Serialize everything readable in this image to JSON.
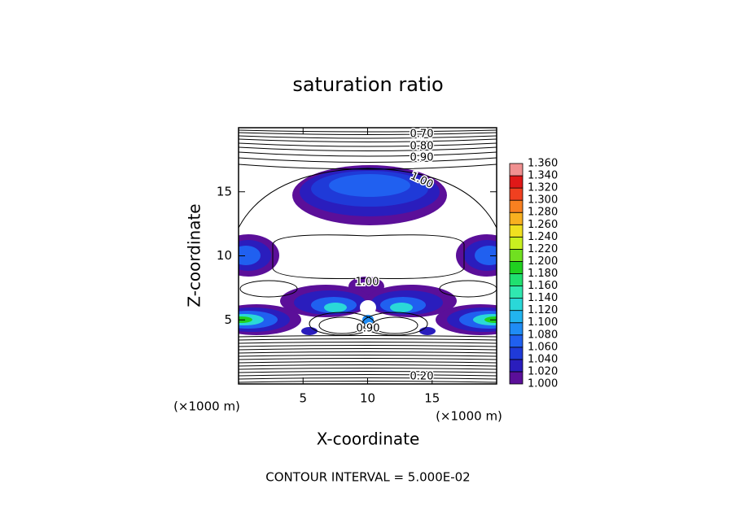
{
  "chart_data": {
    "type": "contour",
    "title": "saturation ratio",
    "x_label": "X-coordinate",
    "y_label": "Z-coordinate",
    "x_unit": "(×1000 m)",
    "y_unit": "(×1000 m)",
    "xlim": [
      0,
      20
    ],
    "ylim": [
      0,
      20
    ],
    "xticks": [
      5,
      10,
      15
    ],
    "yticks": [
      5,
      10,
      15
    ],
    "contour_labels": [
      "0.70",
      "0.80",
      "0.90",
      "1.00",
      "1.00",
      "0.90",
      "0.20"
    ],
    "contour_interval_label": "CONTOUR INTERVAL = 5.000E-02",
    "colorbar": {
      "ticks": [
        {
          "value": 1.0,
          "label": "1.000"
        },
        {
          "value": 1.02,
          "label": "1.020"
        },
        {
          "value": 1.04,
          "label": "1.040"
        },
        {
          "value": 1.06,
          "label": "1.060"
        },
        {
          "value": 1.08,
          "label": "1.080"
        },
        {
          "value": 1.1,
          "label": "1.100"
        },
        {
          "value": 1.12,
          "label": "1.120"
        },
        {
          "value": 1.14,
          "label": "1.140"
        },
        {
          "value": 1.16,
          "label": "1.160"
        },
        {
          "value": 1.18,
          "label": "1.180"
        },
        {
          "value": 1.2,
          "label": "1.200"
        },
        {
          "value": 1.22,
          "label": "1.220"
        },
        {
          "value": 1.24,
          "label": "1.240"
        },
        {
          "value": 1.26,
          "label": "1.260"
        },
        {
          "value": 1.28,
          "label": "1.280"
        },
        {
          "value": 1.3,
          "label": "1.300"
        },
        {
          "value": 1.32,
          "label": "1.320"
        },
        {
          "value": 1.34,
          "label": "1.340"
        },
        {
          "value": 1.36,
          "label": "1.360"
        }
      ],
      "colors": [
        "#5b0f99",
        "#2a1dbd",
        "#1f3ad8",
        "#2060f0",
        "#1f8cf5",
        "#22b4ef",
        "#2ad8d8",
        "#30e8b0",
        "#20e070",
        "#20d020",
        "#70e020",
        "#c8f020",
        "#f0e020",
        "#f8b020",
        "#f88020",
        "#f04020",
        "#e01818",
        "#f09090"
      ]
    }
  }
}
